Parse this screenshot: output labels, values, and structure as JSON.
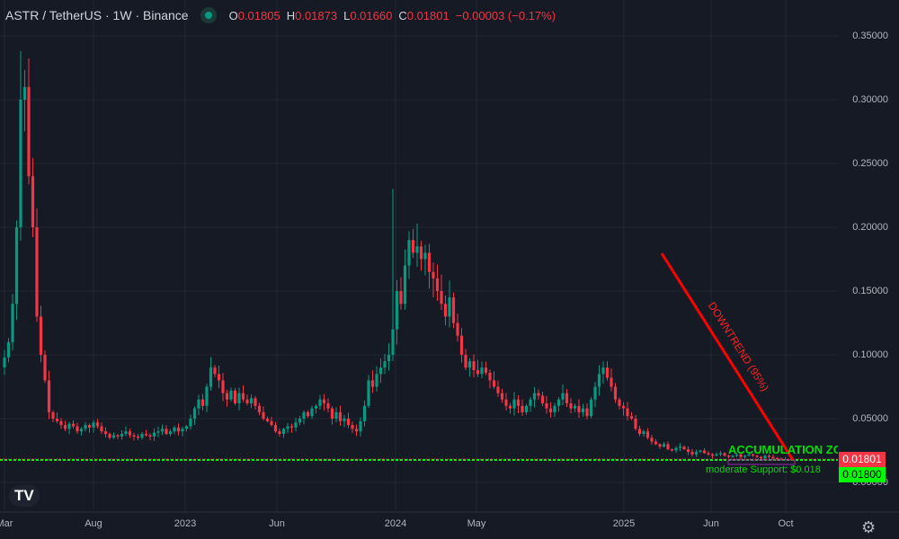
{
  "header": {
    "symbol": "ASTR / TetherUS · 1W · Binance",
    "status_color": "#089981",
    "open_label": "O",
    "open": "0.01805",
    "high_label": "H",
    "high": "0.01873",
    "low_label": "L",
    "low": "0.01660",
    "close_label": "C",
    "close": "0.01801",
    "change": "−0.00003 (−0.17%)"
  },
  "price_scale": {
    "ticks": [
      "0.35000",
      "0.30000",
      "0.25000",
      "0.20000",
      "0.15000",
      "0.10000",
      "0.05000",
      "0.00000"
    ],
    "last_price": "0.01801",
    "last_price_color": "#f23645",
    "support_price": "0.01800",
    "support_color": "#00ff00"
  },
  "time_scale": {
    "ticks": [
      "Mar",
      "Aug",
      "2023",
      "Jun",
      "2024",
      "May",
      "2025",
      "Jun",
      "Oct"
    ]
  },
  "annotations": {
    "downtrend": "DOWNTREND (95%)",
    "accumulation": "ACCUMULATION ZO",
    "support": "moderate Support: $0.018"
  },
  "logo": "TV",
  "icons": {
    "settings": "gear-icon"
  },
  "colors": {
    "up": "#089981",
    "down": "#f23645",
    "trend": "#ff0000",
    "support": "#00ff00",
    "zone": "#9c27b0"
  },
  "chart_data": {
    "type": "candlestick",
    "interval": "1W",
    "ylim": [
      0,
      0.36
    ],
    "grid": true,
    "first_spike_high": 0.338,
    "spike_2024_high": 0.23,
    "closes": [
      0.098,
      0.11,
      0.14,
      0.2,
      0.3,
      0.31,
      0.24,
      0.2,
      0.13,
      0.1,
      0.08,
      0.055,
      0.05,
      0.048,
      0.045,
      0.042,
      0.046,
      0.044,
      0.04,
      0.042,
      0.045,
      0.043,
      0.047,
      0.044,
      0.04,
      0.038,
      0.035,
      0.037,
      0.036,
      0.038,
      0.04,
      0.037,
      0.036,
      0.035,
      0.038,
      0.037,
      0.036,
      0.039,
      0.04,
      0.042,
      0.038,
      0.04,
      0.043,
      0.04,
      0.042,
      0.044,
      0.05,
      0.058,
      0.065,
      0.06,
      0.075,
      0.09,
      0.085,
      0.08,
      0.07,
      0.065,
      0.072,
      0.062,
      0.07,
      0.065,
      0.062,
      0.066,
      0.06,
      0.055,
      0.05,
      0.048,
      0.045,
      0.04,
      0.038,
      0.042,
      0.044,
      0.043,
      0.047,
      0.05,
      0.055,
      0.052,
      0.058,
      0.06,
      0.065,
      0.062,
      0.058,
      0.05,
      0.055,
      0.048,
      0.05,
      0.045,
      0.042,
      0.04,
      0.048,
      0.06,
      0.08,
      0.075,
      0.085,
      0.09,
      0.095,
      0.1,
      0.12,
      0.15,
      0.14,
      0.17,
      0.19,
      0.18,
      0.185,
      0.175,
      0.18,
      0.165,
      0.16,
      0.15,
      0.14,
      0.13,
      0.145,
      0.125,
      0.115,
      0.1,
      0.09,
      0.095,
      0.088,
      0.085,
      0.09,
      0.086,
      0.08,
      0.075,
      0.07,
      0.065,
      0.06,
      0.058,
      0.065,
      0.06,
      0.055,
      0.06,
      0.065,
      0.07,
      0.068,
      0.062,
      0.058,
      0.055,
      0.06,
      0.065,
      0.07,
      0.062,
      0.058,
      0.06,
      0.055,
      0.058,
      0.052,
      0.065,
      0.075,
      0.085,
      0.09,
      0.082,
      0.075,
      0.065,
      0.06,
      0.058,
      0.052,
      0.05,
      0.042,
      0.038,
      0.04,
      0.035,
      0.032,
      0.03,
      0.028,
      0.03,
      0.026,
      0.025,
      0.027,
      0.028,
      0.026,
      0.024,
      0.022,
      0.024,
      0.025,
      0.023,
      0.022,
      0.021,
      0.022,
      0.023,
      0.021,
      0.02,
      0.021,
      0.022,
      0.02,
      0.021,
      0.022,
      0.021,
      0.02,
      0.019,
      0.021,
      0.02,
      0.019,
      0.0185,
      0.01805,
      0.01801
    ]
  }
}
